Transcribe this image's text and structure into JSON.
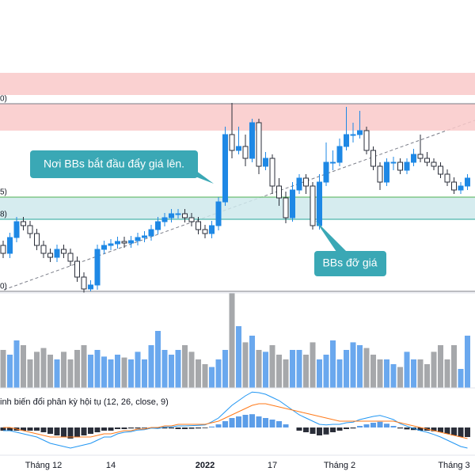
{
  "chart_data": {
    "type": "candlestick",
    "categories": [
      null,
      null,
      null,
      null,
      null,
      null,
      "Tháng 12",
      null,
      null,
      null,
      null,
      null,
      null,
      null,
      null,
      null,
      "14",
      null,
      null,
      null,
      null,
      null,
      null,
      null,
      null,
      null,
      null,
      null,
      null,
      null,
      "2022",
      null,
      null,
      null,
      null,
      null,
      null,
      null,
      null,
      null,
      "17",
      null,
      null,
      null,
      null,
      null,
      null,
      null,
      null,
      null,
      "Tháng 2",
      null,
      null,
      null,
      null,
      null,
      null,
      null,
      null,
      null,
      null,
      null,
      null,
      null,
      null,
      null,
      null,
      "Tháng 3",
      null,
      null
    ],
    "open": [
      60,
      50,
      70,
      90,
      85,
      75,
      60,
      50,
      45,
      55,
      50,
      40,
      20,
      5,
      10,
      55,
      60,
      62,
      65,
      63,
      66,
      70,
      72,
      80,
      90,
      95,
      100,
      100,
      95,
      90,
      80,
      75,
      85,
      115,
      200,
      180,
      185,
      170,
      215,
      160,
      170,
      135,
      120,
      95,
      130,
      145,
      135,
      85,
      140,
      165,
      165,
      185,
      200,
      200,
      205,
      180,
      160,
      140,
      165,
      165,
      155,
      165,
      175,
      170,
      165,
      160,
      150,
      140,
      130,
      135
    ],
    "high": [
      66,
      76,
      96,
      96,
      91,
      81,
      66,
      56,
      61,
      61,
      56,
      46,
      26,
      16,
      61,
      66,
      68,
      71,
      71,
      72,
      76,
      78,
      86,
      96,
      101,
      106,
      106,
      106,
      101,
      96,
      86,
      91,
      121,
      210,
      240,
      210,
      200,
      220,
      220,
      178,
      175,
      145,
      128,
      140,
      150,
      150,
      140,
      150,
      190,
      180,
      195,
      235,
      215,
      230,
      210,
      185,
      165,
      170,
      172,
      170,
      170,
      182,
      200,
      178,
      170,
      165,
      156,
      146,
      140,
      150
    ],
    "low": [
      44,
      44,
      64,
      79,
      69,
      54,
      44,
      39,
      39,
      44,
      34,
      14,
      0,
      2,
      4,
      49,
      54,
      56,
      57,
      57,
      60,
      64,
      66,
      74,
      84,
      89,
      94,
      89,
      84,
      74,
      69,
      69,
      79,
      110,
      170,
      175,
      160,
      165,
      150,
      155,
      125,
      110,
      88,
      90,
      125,
      125,
      80,
      80,
      135,
      155,
      160,
      180,
      190,
      195,
      175,
      155,
      130,
      135,
      155,
      150,
      150,
      160,
      165,
      160,
      155,
      145,
      135,
      125,
      125,
      130
    ],
    "close": [
      50,
      70,
      90,
      85,
      75,
      60,
      50,
      45,
      55,
      50,
      40,
      20,
      5,
      10,
      55,
      60,
      62,
      65,
      63,
      66,
      70,
      72,
      80,
      90,
      95,
      100,
      100,
      95,
      90,
      80,
      75,
      85,
      115,
      200,
      180,
      185,
      170,
      215,
      160,
      170,
      135,
      120,
      95,
      130,
      145,
      135,
      85,
      140,
      165,
      165,
      185,
      200,
      200,
      205,
      180,
      160,
      140,
      165,
      165,
      155,
      165,
      175,
      170,
      165,
      160,
      150,
      140,
      130,
      135,
      145
    ],
    "ylim": [
      0,
      290
    ],
    "up_color": "#1e88e5",
    "down_color": "#ffffff",
    "zones": [
      {
        "from": 250,
        "to": 278,
        "color": "#f9c9c9"
      },
      {
        "from": 205,
        "to": 239,
        "color": "#f9c9c9"
      },
      {
        "from": 93,
        "to": 121,
        "color": "#cfe9ec"
      }
    ],
    "levels": [
      {
        "value": 239,
        "label": "0)",
        "color": "#787b86"
      },
      {
        "value": 121,
        "label": "5)",
        "color": "#4caf50"
      },
      {
        "value": 93,
        "label": "8)",
        "color": "#26a69a"
      },
      {
        "value": 2,
        "label": "0)",
        "color": "#787b86"
      }
    ],
    "annotations": [
      {
        "text": "Nơi BBs bắt đầu đẩy giá lên.",
        "color": "#3aa8b5"
      },
      {
        "text": "BBs đỡ giá",
        "color": "#3aa8b5"
      }
    ],
    "volume": {
      "values": [
        40,
        35,
        50,
        45,
        30,
        38,
        42,
        35,
        30,
        38,
        30,
        40,
        45,
        35,
        40,
        33,
        30,
        35,
        32,
        30,
        38,
        30,
        45,
        60,
        40,
        35,
        40,
        45,
        38,
        30,
        25,
        22,
        30,
        40,
        100,
        65,
        48,
        55,
        40,
        38,
        45,
        35,
        30,
        40,
        40,
        35,
        48,
        30,
        35,
        50,
        30,
        40,
        48,
        45,
        42,
        35,
        30,
        30,
        25,
        22,
        38,
        30,
        30,
        25,
        38,
        45,
        30,
        45,
        20,
        55
      ],
      "ylim": [
        0,
        100
      ],
      "up_color": "#6aa8ee",
      "down_color": "#a6a8ab"
    },
    "macd": {
      "title": "inh biến đổi phân kỳ hội tụ (12, 26, close, 9)",
      "histogram": [
        -1,
        -1,
        -1,
        -1,
        -1,
        -1,
        -1.5,
        -2,
        -2.5,
        -3,
        -3.5,
        -3,
        -2.5,
        -2,
        -1.5,
        -1,
        -1,
        -0.5,
        -0.5,
        -0.3,
        -0.3,
        -0.2,
        -0.2,
        -0.3,
        -0.3,
        -0.3,
        -0.5,
        -0.5,
        -0.4,
        -0.3,
        -0.2,
        0.3,
        1,
        2,
        3,
        3.5,
        4,
        4.2,
        3.5,
        3,
        2.5,
        2,
        1,
        0,
        -1,
        -1.5,
        -2,
        -2.5,
        -2.2,
        -1.5,
        -1,
        -0.5,
        -0.3,
        0.5,
        1,
        1.5,
        1.8,
        1.2,
        0.5,
        -0.3,
        -0.6,
        -0.8,
        -1,
        -1,
        -1.2,
        -1.5,
        -2,
        -2.5,
        -3,
        -3
      ],
      "macd": [
        -1,
        -1,
        -1.5,
        -2,
        -2.5,
        -3,
        -4,
        -5,
        -5.5,
        -6,
        -6.5,
        -6,
        -5.5,
        -5,
        -4,
        -3,
        -3,
        -2,
        -1.5,
        -1.3,
        -0.8,
        -0.7,
        -0.2,
        -0.3,
        0.2,
        0.2,
        0.5,
        0.5,
        0.6,
        0.7,
        0.8,
        1.8,
        3,
        5,
        7,
        8.5,
        10,
        11.2,
        11,
        10.5,
        9.5,
        8.5,
        7,
        5.5,
        4,
        3,
        2,
        1,
        0.8,
        1,
        1,
        1.5,
        1.7,
        2.5,
        3,
        3.5,
        3.8,
        3.2,
        2.5,
        1.2,
        0.4,
        -0.3,
        -1,
        -1.5,
        -2.2,
        -3,
        -4,
        -5,
        -6,
        -6.5
      ],
      "signal": [
        0,
        0,
        -0.5,
        -1,
        -1.5,
        -2,
        -2.5,
        -3,
        -3,
        -3,
        -3,
        -3,
        -3,
        -3,
        -2.5,
        -2,
        -2,
        -1.5,
        -1,
        -1,
        -0.5,
        -0.5,
        0,
        0,
        0.5,
        0.5,
        1,
        1,
        1,
        1,
        1,
        1.5,
        2,
        3,
        4,
        5,
        6,
        7,
        7.5,
        7.5,
        7,
        6.5,
        6,
        5.5,
        5,
        4.5,
        4,
        3.5,
        3,
        2.5,
        2,
        2,
        2,
        2,
        2,
        2,
        2,
        2,
        2,
        1.5,
        1,
        0.5,
        0,
        -0.5,
        -1,
        -1.5,
        -2,
        -2.5,
        -3,
        -3.5
      ],
      "ylim": [
        -8,
        12
      ],
      "macd_color": "#2196f3",
      "signal_color": "#ff7a1a",
      "pos_color": "#5b9de8",
      "neg_color": "#2a2e39"
    }
  }
}
